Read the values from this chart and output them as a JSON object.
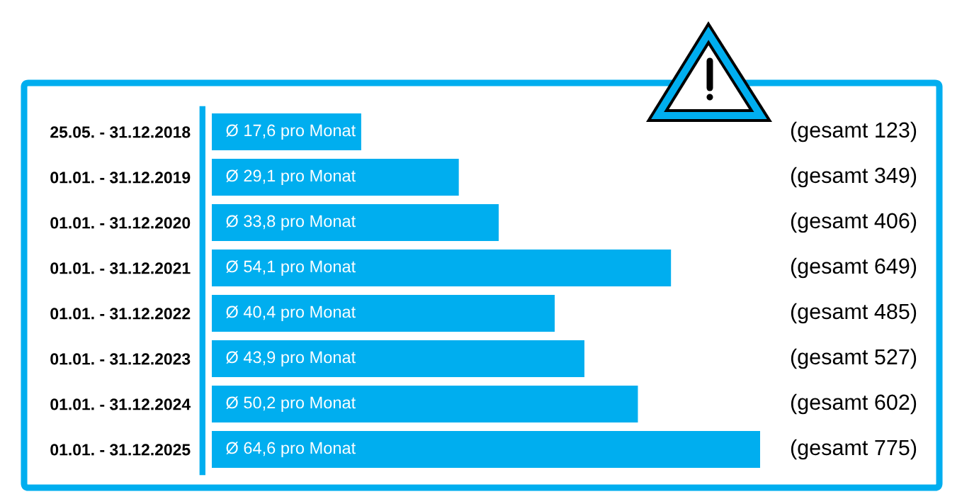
{
  "chart_data": {
    "type": "bar",
    "orientation": "horizontal",
    "categories": [
      "25.05. - 31.12.2018",
      "01.01. - 31.12.2019",
      "01.01. - 31.12.2020",
      "01.01. - 31.12.2021",
      "01.01. - 31.12.2022",
      "01.01. - 31.12.2023",
      "01.01. - 31.12.2024",
      "01.01. - 31.12.2025"
    ],
    "values": [
      17.6,
      29.1,
      33.8,
      54.1,
      40.4,
      43.9,
      50.2,
      64.6
    ],
    "value_labels": [
      "Ø 17,6 pro Monat",
      "Ø 29,1 pro Monat",
      "Ø 33,8 pro Monat",
      "Ø 54,1 pro Monat",
      "Ø 40,4 pro Monat",
      "Ø 43,9 pro Monat",
      "Ø 50,2 pro Monat",
      "Ø 64,6 pro Monat"
    ],
    "color": "#00aeef",
    "tick_labels": "y",
    "annotations": [
      "(gesamt 123)",
      "(gesamt 349)",
      "(gesamt 406)",
      "(gesamt 649)",
      "(gesamt 485)",
      "(gesamt 527)",
      "(gesamt 602)",
      "(gesamt 775)"
    ]
  }
}
